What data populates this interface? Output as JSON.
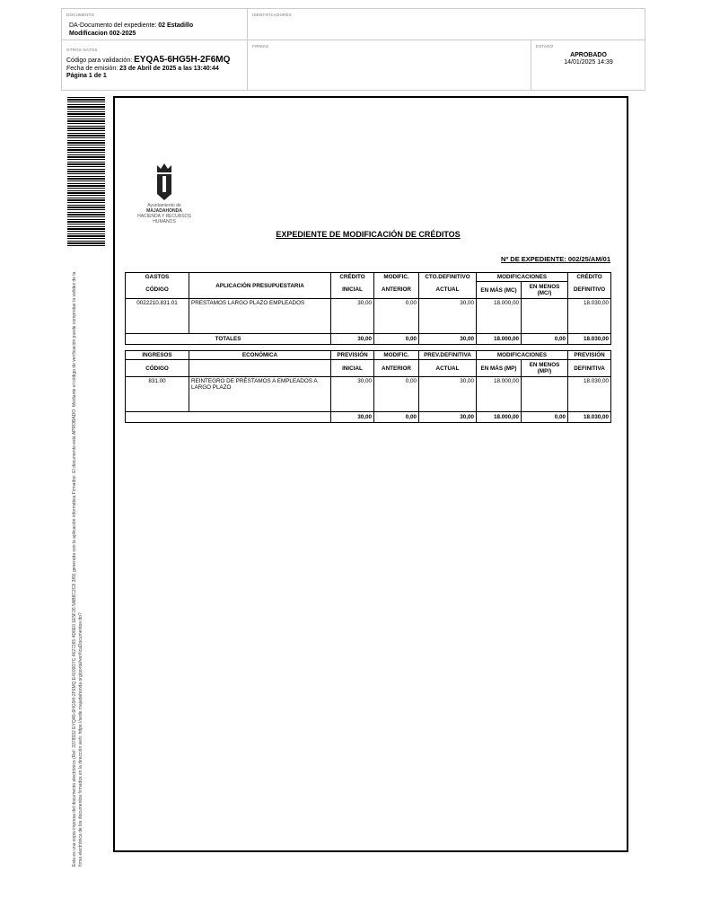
{
  "header": {
    "documento_label": "DOCUMENTO",
    "documento_text": "DA-Documento del expediente:",
    "documento_bold": "02 Estadillo",
    "documento_line2": "Modificacion 002-2025",
    "identificadores_label": "IDENTIFICADORES",
    "otros_label": "OTROS DATOS",
    "codigo_label": "Código para validación:",
    "codigo": "EYQA5-6HG5H-2F6MQ",
    "fecha_label": "Fecha de emisión:",
    "fecha": "23 de Abril de 2025 a las 13:40:44",
    "pagina": "Página 1 de 1",
    "firmas_label": "FIRMAS",
    "estado_label": "ESTADO",
    "estado": "APROBADO",
    "estado_fecha": "14/01/2025 14:39"
  },
  "side_text": "Esta es una copia impresa del documento electrónico (Ref: 3378932 EYQA5-6HG5H-2F6MQ E4109D7C 4627265 4D6E0 1E5F26 5AB8C2C8 389) generada con la aplicación informática Firmadoc. El documento está APROBADO. Mediante el código de verificación puede comprobar la validez de la firma electrónica de los documentos firmados en la dirección web: https://sede.majadahonda.org/portal/verificaDocumentos.do?",
  "logo": {
    "line1": "Ayuntamiento de",
    "line2": "MAJADAHONDA",
    "line3": "HACIENDA Y RECURSOS",
    "line4": "HUMANOS"
  },
  "title": "EXPEDIENTE DE MODIFICACIÓN DE CRÉDITOS",
  "expediente": "Nº DE EXPEDIENTE:  002/25/AM/01",
  "gastos": {
    "h1": [
      "GASTOS",
      "APLICACIÓN PRESUPUESTARIA",
      "CRÉDITO",
      "MODIFIC.",
      "CTO.DEFINITIVO",
      "MODIFICACIONES",
      "CRÉDITO"
    ],
    "h2": [
      "CÓDIGO",
      "INICIAL",
      "ANTERIOR",
      "ACTUAL",
      "EN MÁS (MC)",
      "EN MENOS (MC/)",
      "DEFINITIVO"
    ],
    "row": [
      "0022210.831.01",
      "PRESTAMOS LARGO PLAZO EMPLEADOS",
      "30,00",
      "0,00",
      "30,00",
      "18.000,00",
      "",
      "18.030,00"
    ],
    "totales_label": "TOTALES",
    "totales": [
      "30,00",
      "0,00",
      "30,00",
      "18.000,00",
      "0,00",
      "18.030,00"
    ]
  },
  "ingresos": {
    "h1": [
      "INGRESOS",
      "ECONÓMICA",
      "PREVISIÓN",
      "MODIFIC.",
      "PREV.DEFINITIVA",
      "MODIFICACIONES",
      "PREVISIÓN"
    ],
    "h2": [
      "CÓDIGO",
      "INICIAL",
      "ANTERIOR",
      "ACTUAL",
      "EN MÁS (MP)",
      "EN MENOS (MP/)",
      "DEFINITIVA"
    ],
    "row": [
      "831.00",
      "REINTEGRO DE PRÉSTAMOS A EMPLEADOS A LARGO PLAZO",
      "30,00",
      "0,00",
      "30,00",
      "18.000,00",
      "",
      "18.030,00"
    ],
    "totales": [
      "30,00",
      "0,00",
      "30,00",
      "18.000,00",
      "0,00",
      "18.030,00"
    ]
  }
}
